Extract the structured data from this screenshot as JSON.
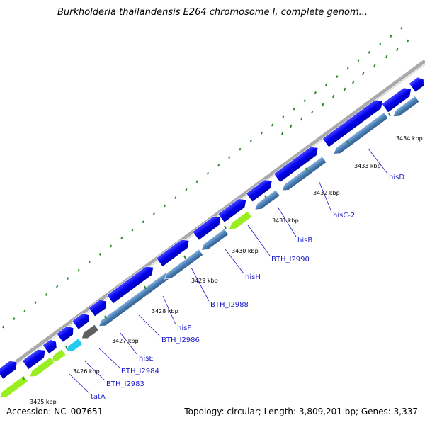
{
  "title": "Burkholderia thailandensis E264 chromosome I, complete genom...",
  "footer": {
    "accession": "Accession: NC_007651",
    "summary": "Topology: circular; Length: 3,809,201 bp; Genes: 3,337"
  },
  "colors": {
    "forward_cds": "#0000ee",
    "reverse_cds": "#4a7fb5",
    "rna_gene": "#99ee22",
    "other_gene": "#606060",
    "highlight_gene": "#22ccee",
    "backbone": "#999999",
    "gc_skew_dots": "#228822",
    "label": "#1a1acc"
  },
  "ticks": [
    {
      "label": "3425 kbp"
    },
    {
      "label": "3426 kbp"
    },
    {
      "label": "3427 kbp"
    },
    {
      "label": "3428 kbp"
    },
    {
      "label": "3429 kbp"
    },
    {
      "label": "3430 kbp"
    },
    {
      "label": "3431 kbp"
    },
    {
      "label": "3432 kbp"
    },
    {
      "label": "3433 kbp"
    },
    {
      "label": "3434 kbp"
    }
  ],
  "gene_labels": [
    {
      "label": "tatA"
    },
    {
      "label": "BTH_I2983"
    },
    {
      "label": "BTH_I2984"
    },
    {
      "label": "hisE"
    },
    {
      "label": "BTH_I2986"
    },
    {
      "label": "hisF"
    },
    {
      "label": "BTH_I2988"
    },
    {
      "label": "hisH"
    },
    {
      "label": "BTH_I2990"
    },
    {
      "label": "hisB"
    },
    {
      "label": "hisC-2"
    },
    {
      "label": "hisD"
    }
  ]
}
